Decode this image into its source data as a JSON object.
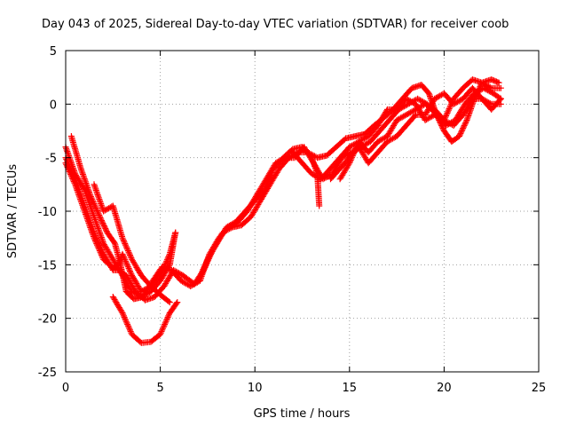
{
  "chart_data": {
    "type": "scatter",
    "title": "Day 043 of 2025, Sidereal Day-to-day VTEC variation (SDTVAR) for receiver coob",
    "xlabel": "GPS time / hours",
    "ylabel": "SDTVAR / TECUs",
    "xlim": [
      0,
      25
    ],
    "ylim": [
      -25,
      5
    ],
    "xticks": [
      "0",
      "5",
      "10",
      "15",
      "20",
      "25"
    ],
    "yticks": [
      "5",
      "0",
      "-5",
      "-10",
      "-15",
      "-20",
      "-25"
    ],
    "grid": true,
    "marker_color": "#ff0000",
    "marker": "plus",
    "series": [
      {
        "name": "track-1",
        "points": [
          [
            0.0,
            -4.0
          ],
          [
            0.5,
            -6.5
          ],
          [
            1.0,
            -8.0
          ],
          [
            1.5,
            -10.5
          ],
          [
            2.0,
            -13.0
          ],
          [
            2.5,
            -14.5
          ],
          [
            3.0,
            -16.0
          ],
          [
            3.5,
            -17.5
          ],
          [
            4.0,
            -18.0
          ],
          [
            4.5,
            -17.5
          ],
          [
            5.0,
            -16.5
          ],
          [
            5.5,
            -15.0
          ],
          [
            5.8,
            -12.0
          ]
        ]
      },
      {
        "name": "track-2",
        "points": [
          [
            0.0,
            -5.0
          ],
          [
            0.5,
            -7.0
          ],
          [
            1.0,
            -9.5
          ],
          [
            1.5,
            -12.0
          ],
          [
            2.0,
            -14.0
          ],
          [
            2.5,
            -15.5
          ],
          [
            2.8,
            -15.5
          ],
          [
            3.2,
            -16.0
          ],
          [
            3.7,
            -17.5
          ],
          [
            4.2,
            -18.3
          ],
          [
            4.7,
            -18.0
          ],
          [
            5.2,
            -17.0
          ],
          [
            5.7,
            -15.5
          ],
          [
            6.2,
            -16.0
          ],
          [
            6.8,
            -16.8
          ],
          [
            7.3,
            -15.5
          ],
          [
            7.8,
            -13.5
          ],
          [
            8.3,
            -12.0
          ],
          [
            8.8,
            -11.5
          ],
          [
            9.3,
            -11.3
          ],
          [
            9.8,
            -10.5
          ],
          [
            10.3,
            -9.0
          ],
          [
            10.8,
            -7.5
          ],
          [
            11.3,
            -6.0
          ],
          [
            11.8,
            -5.0
          ],
          [
            12.3,
            -4.5
          ],
          [
            12.8,
            -4.5
          ],
          [
            13.3,
            -5.0
          ],
          [
            13.8,
            -4.8
          ],
          [
            14.3,
            -4.0
          ],
          [
            14.8,
            -3.2
          ],
          [
            15.3,
            -3.0
          ],
          [
            15.8,
            -2.8
          ],
          [
            16.3,
            -2.0
          ],
          [
            16.8,
            -1.3
          ],
          [
            17.3,
            -0.5
          ],
          [
            17.8,
            0.5
          ],
          [
            18.3,
            1.5
          ],
          [
            18.8,
            1.8
          ],
          [
            19.2,
            1.0
          ],
          [
            19.6,
            -1.0
          ],
          [
            20.0,
            -2.5
          ],
          [
            20.4,
            -3.5
          ],
          [
            20.8,
            -3.0
          ],
          [
            21.2,
            -1.5
          ],
          [
            21.6,
            0.5
          ],
          [
            22.0,
            2.0
          ],
          [
            22.5,
            1.5
          ],
          [
            23.0,
            1.5
          ]
        ]
      },
      {
        "name": "track-3",
        "points": [
          [
            0.3,
            -3.0
          ],
          [
            0.8,
            -6.0
          ],
          [
            1.3,
            -8.5
          ],
          [
            1.8,
            -10.5
          ],
          [
            2.2,
            -12.0
          ],
          [
            2.6,
            -13.0
          ],
          [
            2.9,
            -15.0
          ],
          [
            3.2,
            -17.5
          ],
          [
            3.6,
            -18.2
          ],
          [
            4.1,
            -18.0
          ],
          [
            4.6,
            -16.5
          ],
          [
            5.1,
            -15.2
          ],
          [
            5.6,
            -15.5
          ],
          [
            6.1,
            -16.5
          ],
          [
            6.6,
            -17.0
          ],
          [
            7.1,
            -16.5
          ],
          [
            7.6,
            -14.0
          ],
          [
            8.1,
            -12.5
          ],
          [
            8.6,
            -11.5
          ],
          [
            9.1,
            -11.0
          ],
          [
            9.6,
            -10.0
          ],
          [
            10.1,
            -8.5
          ],
          [
            10.6,
            -7.0
          ],
          [
            11.1,
            -5.5
          ],
          [
            11.6,
            -5.0
          ],
          [
            12.1,
            -5.0
          ],
          [
            12.6,
            -4.0
          ],
          [
            13.1,
            -5.5
          ],
          [
            13.6,
            -7.0
          ],
          [
            14.1,
            -6.5
          ],
          [
            14.6,
            -5.0
          ],
          [
            15.1,
            -4.5
          ],
          [
            15.6,
            -4.0
          ],
          [
            16.1,
            -3.5
          ],
          [
            16.6,
            -2.5
          ],
          [
            17.1,
            -1.5
          ],
          [
            17.6,
            -0.5
          ],
          [
            18.1,
            0.0
          ],
          [
            18.6,
            0.5
          ],
          [
            19.1,
            0.0
          ],
          [
            19.6,
            -1.0
          ],
          [
            20.1,
            -2.0
          ],
          [
            20.6,
            -1.5
          ],
          [
            21.1,
            0.0
          ],
          [
            21.6,
            1.0
          ],
          [
            22.1,
            1.5
          ],
          [
            22.6,
            1.0
          ],
          [
            23.0,
            0.5
          ]
        ]
      },
      {
        "name": "track-4",
        "points": [
          [
            0.0,
            -5.5
          ],
          [
            0.5,
            -7.5
          ],
          [
            1.0,
            -10.0
          ],
          [
            1.5,
            -12.5
          ],
          [
            2.0,
            -14.5
          ],
          [
            2.5,
            -15.3
          ],
          [
            2.8,
            -15.0
          ],
          [
            3.0,
            -14.0
          ],
          [
            3.5,
            -16.0
          ],
          [
            4.0,
            -17.5
          ],
          [
            4.5,
            -17.0
          ],
          [
            5.0,
            -17.8
          ],
          [
            5.5,
            -18.5
          ]
        ]
      },
      {
        "name": "track-5",
        "points": [
          [
            2.5,
            -18.0
          ],
          [
            3.0,
            -19.5
          ],
          [
            3.5,
            -21.5
          ],
          [
            4.0,
            -22.3
          ],
          [
            4.5,
            -22.2
          ],
          [
            5.0,
            -21.5
          ],
          [
            5.5,
            -19.5
          ],
          [
            5.9,
            -18.5
          ]
        ]
      },
      {
        "name": "track-6",
        "points": [
          [
            1.5,
            -7.5
          ],
          [
            2.0,
            -10.0
          ],
          [
            2.5,
            -9.5
          ],
          [
            3.0,
            -12.5
          ],
          [
            3.5,
            -14.5
          ],
          [
            4.0,
            -16.0
          ],
          [
            4.5,
            -17.0
          ],
          [
            5.0,
            -16.0
          ],
          [
            5.5,
            -14.0
          ],
          [
            5.8,
            -12.0
          ]
        ]
      },
      {
        "name": "track-7",
        "points": [
          [
            7.0,
            -16.5
          ],
          [
            7.5,
            -14.5
          ],
          [
            8.0,
            -13.0
          ],
          [
            8.5,
            -11.5
          ],
          [
            9.0,
            -11.0
          ],
          [
            9.5,
            -10.0
          ],
          [
            10.0,
            -9.0
          ],
          [
            10.5,
            -8.0
          ],
          [
            11.0,
            -6.0
          ],
          [
            11.5,
            -5.0
          ],
          [
            12.0,
            -4.2
          ],
          [
            12.5,
            -4.0
          ],
          [
            13.0,
            -5.0
          ],
          [
            13.3,
            -6.5
          ],
          [
            13.4,
            -9.5
          ]
        ]
      },
      {
        "name": "track-8",
        "points": [
          [
            14.5,
            -7.0
          ],
          [
            15.0,
            -5.5
          ],
          [
            15.5,
            -3.5
          ],
          [
            16.0,
            -3.0
          ],
          [
            16.5,
            -2.0
          ],
          [
            17.0,
            -0.5
          ],
          [
            17.5,
            -0.5
          ],
          [
            18.0,
            0.5
          ],
          [
            18.5,
            0.0
          ],
          [
            19.0,
            -1.5
          ],
          [
            19.5,
            -1.0
          ],
          [
            20.0,
            -1.5
          ],
          [
            20.5,
            0.5
          ],
          [
            21.0,
            1.5
          ],
          [
            21.5,
            2.3
          ],
          [
            22.0,
            2.0
          ],
          [
            22.5,
            2.3
          ],
          [
            22.9,
            2.0
          ]
        ]
      },
      {
        "name": "track-9",
        "points": [
          [
            12.0,
            -4.5
          ],
          [
            12.5,
            -5.5
          ],
          [
            13.0,
            -6.5
          ],
          [
            13.5,
            -7.0
          ],
          [
            14.0,
            -6.0
          ],
          [
            14.5,
            -5.0
          ],
          [
            15.0,
            -4.0
          ],
          [
            15.5,
            -3.5
          ],
          [
            16.0,
            -4.5
          ],
          [
            16.5,
            -3.5
          ],
          [
            17.0,
            -3.0
          ],
          [
            17.5,
            -1.5
          ],
          [
            18.0,
            -1.0
          ],
          [
            18.5,
            -0.5
          ],
          [
            19.0,
            0.0
          ],
          [
            19.5,
            -0.5
          ],
          [
            20.0,
            -1.5
          ],
          [
            20.5,
            -2.0
          ],
          [
            21.0,
            -1.0
          ],
          [
            21.5,
            0.5
          ],
          [
            22.0,
            0.5
          ],
          [
            22.5,
            0.0
          ],
          [
            23.0,
            0.0
          ]
        ]
      },
      {
        "name": "track-10",
        "points": [
          [
            14.0,
            -7.0
          ],
          [
            14.5,
            -6.0
          ],
          [
            15.0,
            -5.0
          ],
          [
            15.5,
            -4.0
          ],
          [
            16.0,
            -5.5
          ],
          [
            16.5,
            -4.5
          ],
          [
            17.0,
            -3.5
          ],
          [
            17.5,
            -3.0
          ],
          [
            18.0,
            -2.0
          ],
          [
            18.5,
            -1.0
          ],
          [
            19.0,
            -1.0
          ],
          [
            19.5,
            0.5
          ],
          [
            20.0,
            1.0
          ],
          [
            20.5,
            0.0
          ],
          [
            21.0,
            0.5
          ],
          [
            21.5,
            1.5
          ],
          [
            22.0,
            0.5
          ],
          [
            22.5,
            -0.5
          ],
          [
            23.0,
            0.5
          ]
        ]
      }
    ]
  }
}
